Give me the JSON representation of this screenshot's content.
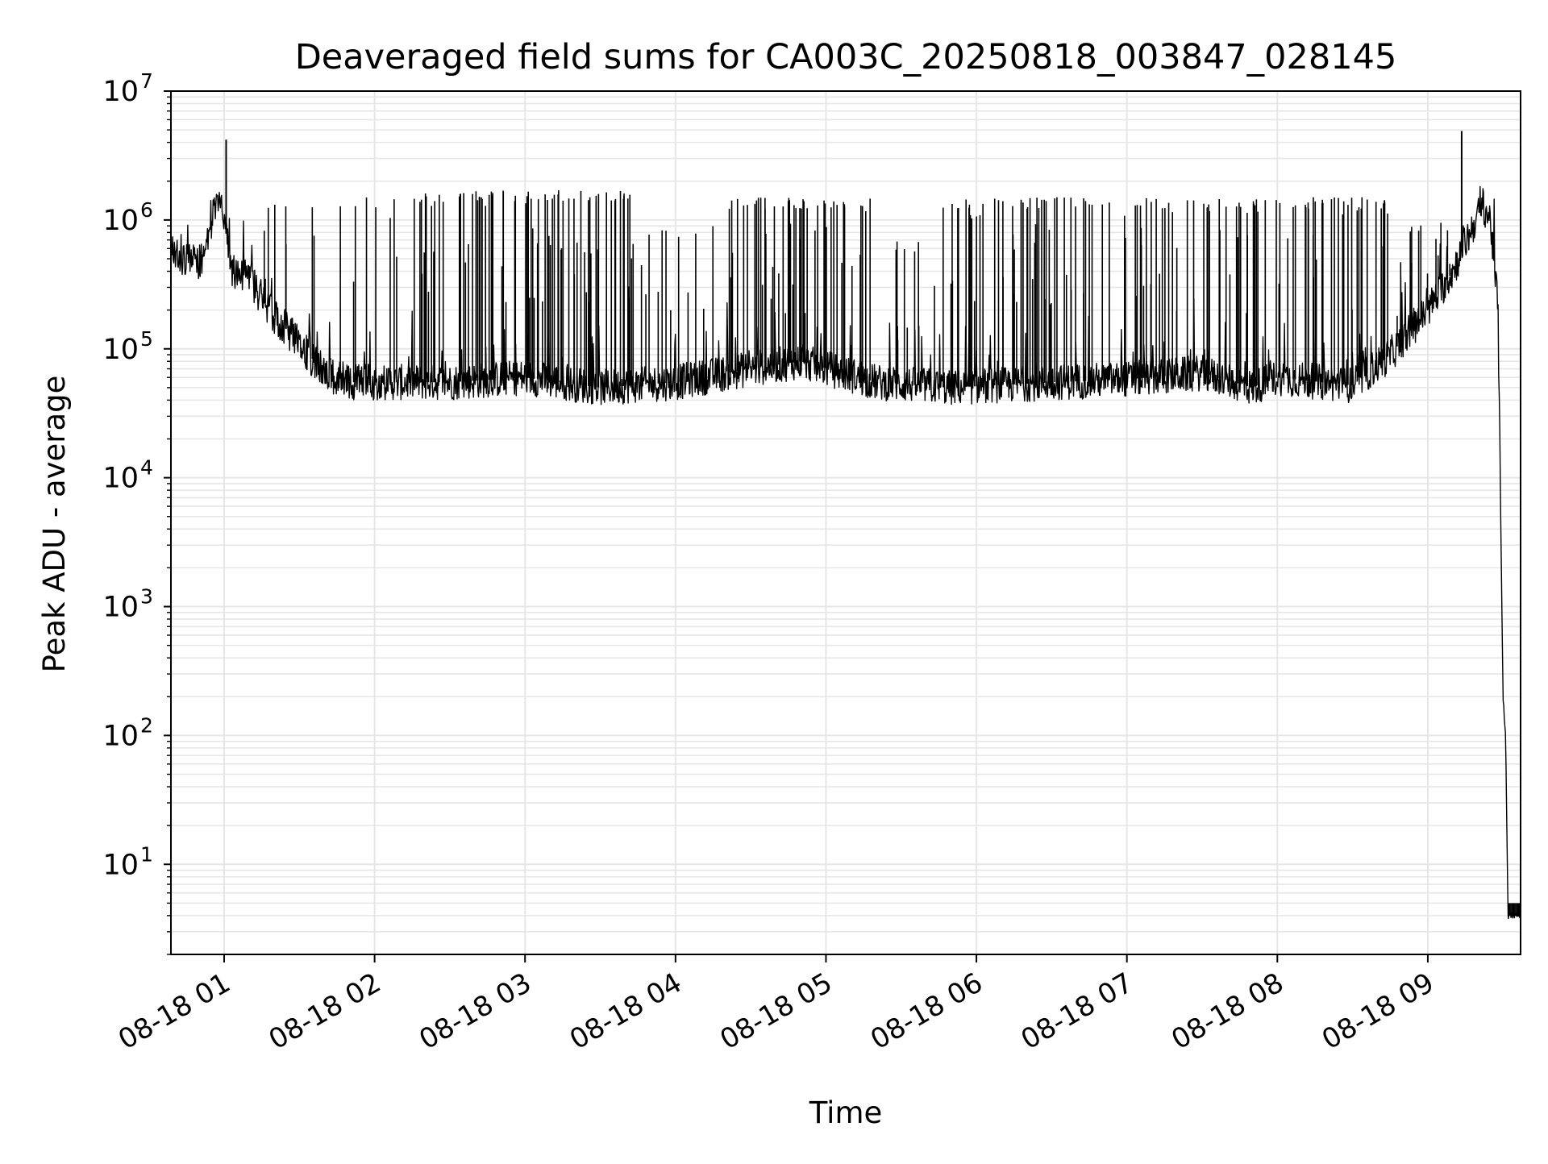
{
  "chart_data": {
    "type": "line",
    "title": "Deaveraged field sums for CA003C_20250818_003847_028145",
    "xlabel": "Time",
    "ylabel": "Peak ADU - average",
    "yscale": "log",
    "ylim": [
      2,
      10000000
    ],
    "xlim": [
      "2025-08-18 00:38:47",
      "2025-08-18 09:37:00"
    ],
    "grid": true,
    "line_color": "#000000",
    "grid_color": "#e6e6e6",
    "x_ticks": [
      {
        "t": "2025-08-18 01:00",
        "label": "08-18 01"
      },
      {
        "t": "2025-08-18 02:00",
        "label": "08-18 02"
      },
      {
        "t": "2025-08-18 03:00",
        "label": "08-18 03"
      },
      {
        "t": "2025-08-18 04:00",
        "label": "08-18 04"
      },
      {
        "t": "2025-08-18 05:00",
        "label": "08-18 05"
      },
      {
        "t": "2025-08-18 06:00",
        "label": "08-18 06"
      },
      {
        "t": "2025-08-18 07:00",
        "label": "08-18 07"
      },
      {
        "t": "2025-08-18 08:00",
        "label": "08-18 08"
      },
      {
        "t": "2025-08-18 09:00",
        "label": "08-18 09"
      }
    ],
    "y_ticks": [
      {
        "value": 10,
        "base": "10",
        "exp": "1"
      },
      {
        "value": 100,
        "base": "10",
        "exp": "2"
      },
      {
        "value": 1000,
        "base": "10",
        "exp": "3"
      },
      {
        "value": 10000,
        "base": "10",
        "exp": "4"
      },
      {
        "value": 100000,
        "base": "10",
        "exp": "5"
      },
      {
        "value": 1000000,
        "base": "10",
        "exp": "6"
      },
      {
        "value": 10000000,
        "base": "10",
        "exp": "7"
      }
    ],
    "series": [
      {
        "baseline": [
          [
            "2025-08-18 00:38:47",
            650000
          ],
          [
            "2025-08-18 00:42",
            520000
          ],
          [
            "2025-08-18 00:48",
            470000
          ],
          [
            "2025-08-18 00:52",
            500000
          ],
          [
            "2025-08-18 00:55",
            1000000
          ],
          [
            "2025-08-18 00:58",
            1300000
          ],
          [
            "2025-08-18 01:00",
            1000000
          ],
          [
            "2025-08-18 01:03",
            400000
          ],
          [
            "2025-08-18 01:10",
            350000
          ],
          [
            "2025-08-18 01:20",
            180000
          ],
          [
            "2025-08-18 01:30",
            110000
          ],
          [
            "2025-08-18 01:40",
            65000
          ],
          [
            "2025-08-18 01:50",
            55000
          ],
          [
            "2025-08-18 02:30",
            55000
          ],
          [
            "2025-08-18 03:00",
            60000
          ],
          [
            "2025-08-18 03:30",
            50000
          ],
          [
            "2025-08-18 04:00",
            55000
          ],
          [
            "2025-08-18 04:30",
            70000
          ],
          [
            "2025-08-18 04:50",
            80000
          ],
          [
            "2025-08-18 05:20",
            55000
          ],
          [
            "2025-08-18 05:50",
            50000
          ],
          [
            "2025-08-18 06:30",
            55000
          ],
          [
            "2025-08-18 07:00",
            58000
          ],
          [
            "2025-08-18 07:30",
            65000
          ],
          [
            "2025-08-18 07:50",
            50000
          ],
          [
            "2025-08-18 08:00",
            60000
          ],
          [
            "2025-08-18 08:30",
            52000
          ],
          [
            "2025-08-18 08:45",
            90000
          ],
          [
            "2025-08-18 09:00",
            200000
          ],
          [
            "2025-08-18 09:10",
            400000
          ],
          [
            "2025-08-18 09:18",
            900000
          ],
          [
            "2025-08-18 09:22",
            1300000
          ],
          [
            "2025-08-18 09:25",
            1000000
          ],
          [
            "2025-08-18 09:28",
            200000
          ],
          [
            "2025-08-18 09:30",
            200
          ],
          [
            "2025-08-18 09:31",
            100
          ],
          [
            "2025-08-18 09:32",
            4
          ],
          [
            "2025-08-18 09:37",
            4
          ]
        ],
        "spikes": [
          [
            "2025-08-18 01:00:48",
            4200000
          ],
          [
            "2025-08-18 09:13:30",
            4900000
          ]
        ],
        "spike_bands": [
          {
            "from": "2025-08-18 01:15",
            "to": "2025-08-18 01:45",
            "count": 8,
            "max": 1500000
          },
          {
            "from": "2025-08-18 01:45",
            "to": "2025-08-18 02:10",
            "count": 8,
            "max": 1500000
          },
          {
            "from": "2025-08-18 02:15",
            "to": "2025-08-18 03:45",
            "count": 90,
            "max": 1700000
          },
          {
            "from": "2025-08-18 03:45",
            "to": "2025-08-18 04:20",
            "count": 12,
            "max": 900000
          },
          {
            "from": "2025-08-18 04:20",
            "to": "2025-08-18 05:20",
            "count": 55,
            "max": 1500000
          },
          {
            "from": "2025-08-18 05:20",
            "to": "2025-08-18 05:45",
            "count": 10,
            "max": 700000
          },
          {
            "from": "2025-08-18 05:45",
            "to": "2025-08-18 06:50",
            "count": 55,
            "max": 1500000
          },
          {
            "from": "2025-08-18 06:50",
            "to": "2025-08-18 07:45",
            "count": 35,
            "max": 1500000
          },
          {
            "from": "2025-08-18 07:45",
            "to": "2025-08-18 08:45",
            "count": 50,
            "max": 1500000
          },
          {
            "from": "2025-08-18 08:45",
            "to": "2025-08-18 09:10",
            "count": 15,
            "max": 1000000
          }
        ]
      }
    ]
  }
}
